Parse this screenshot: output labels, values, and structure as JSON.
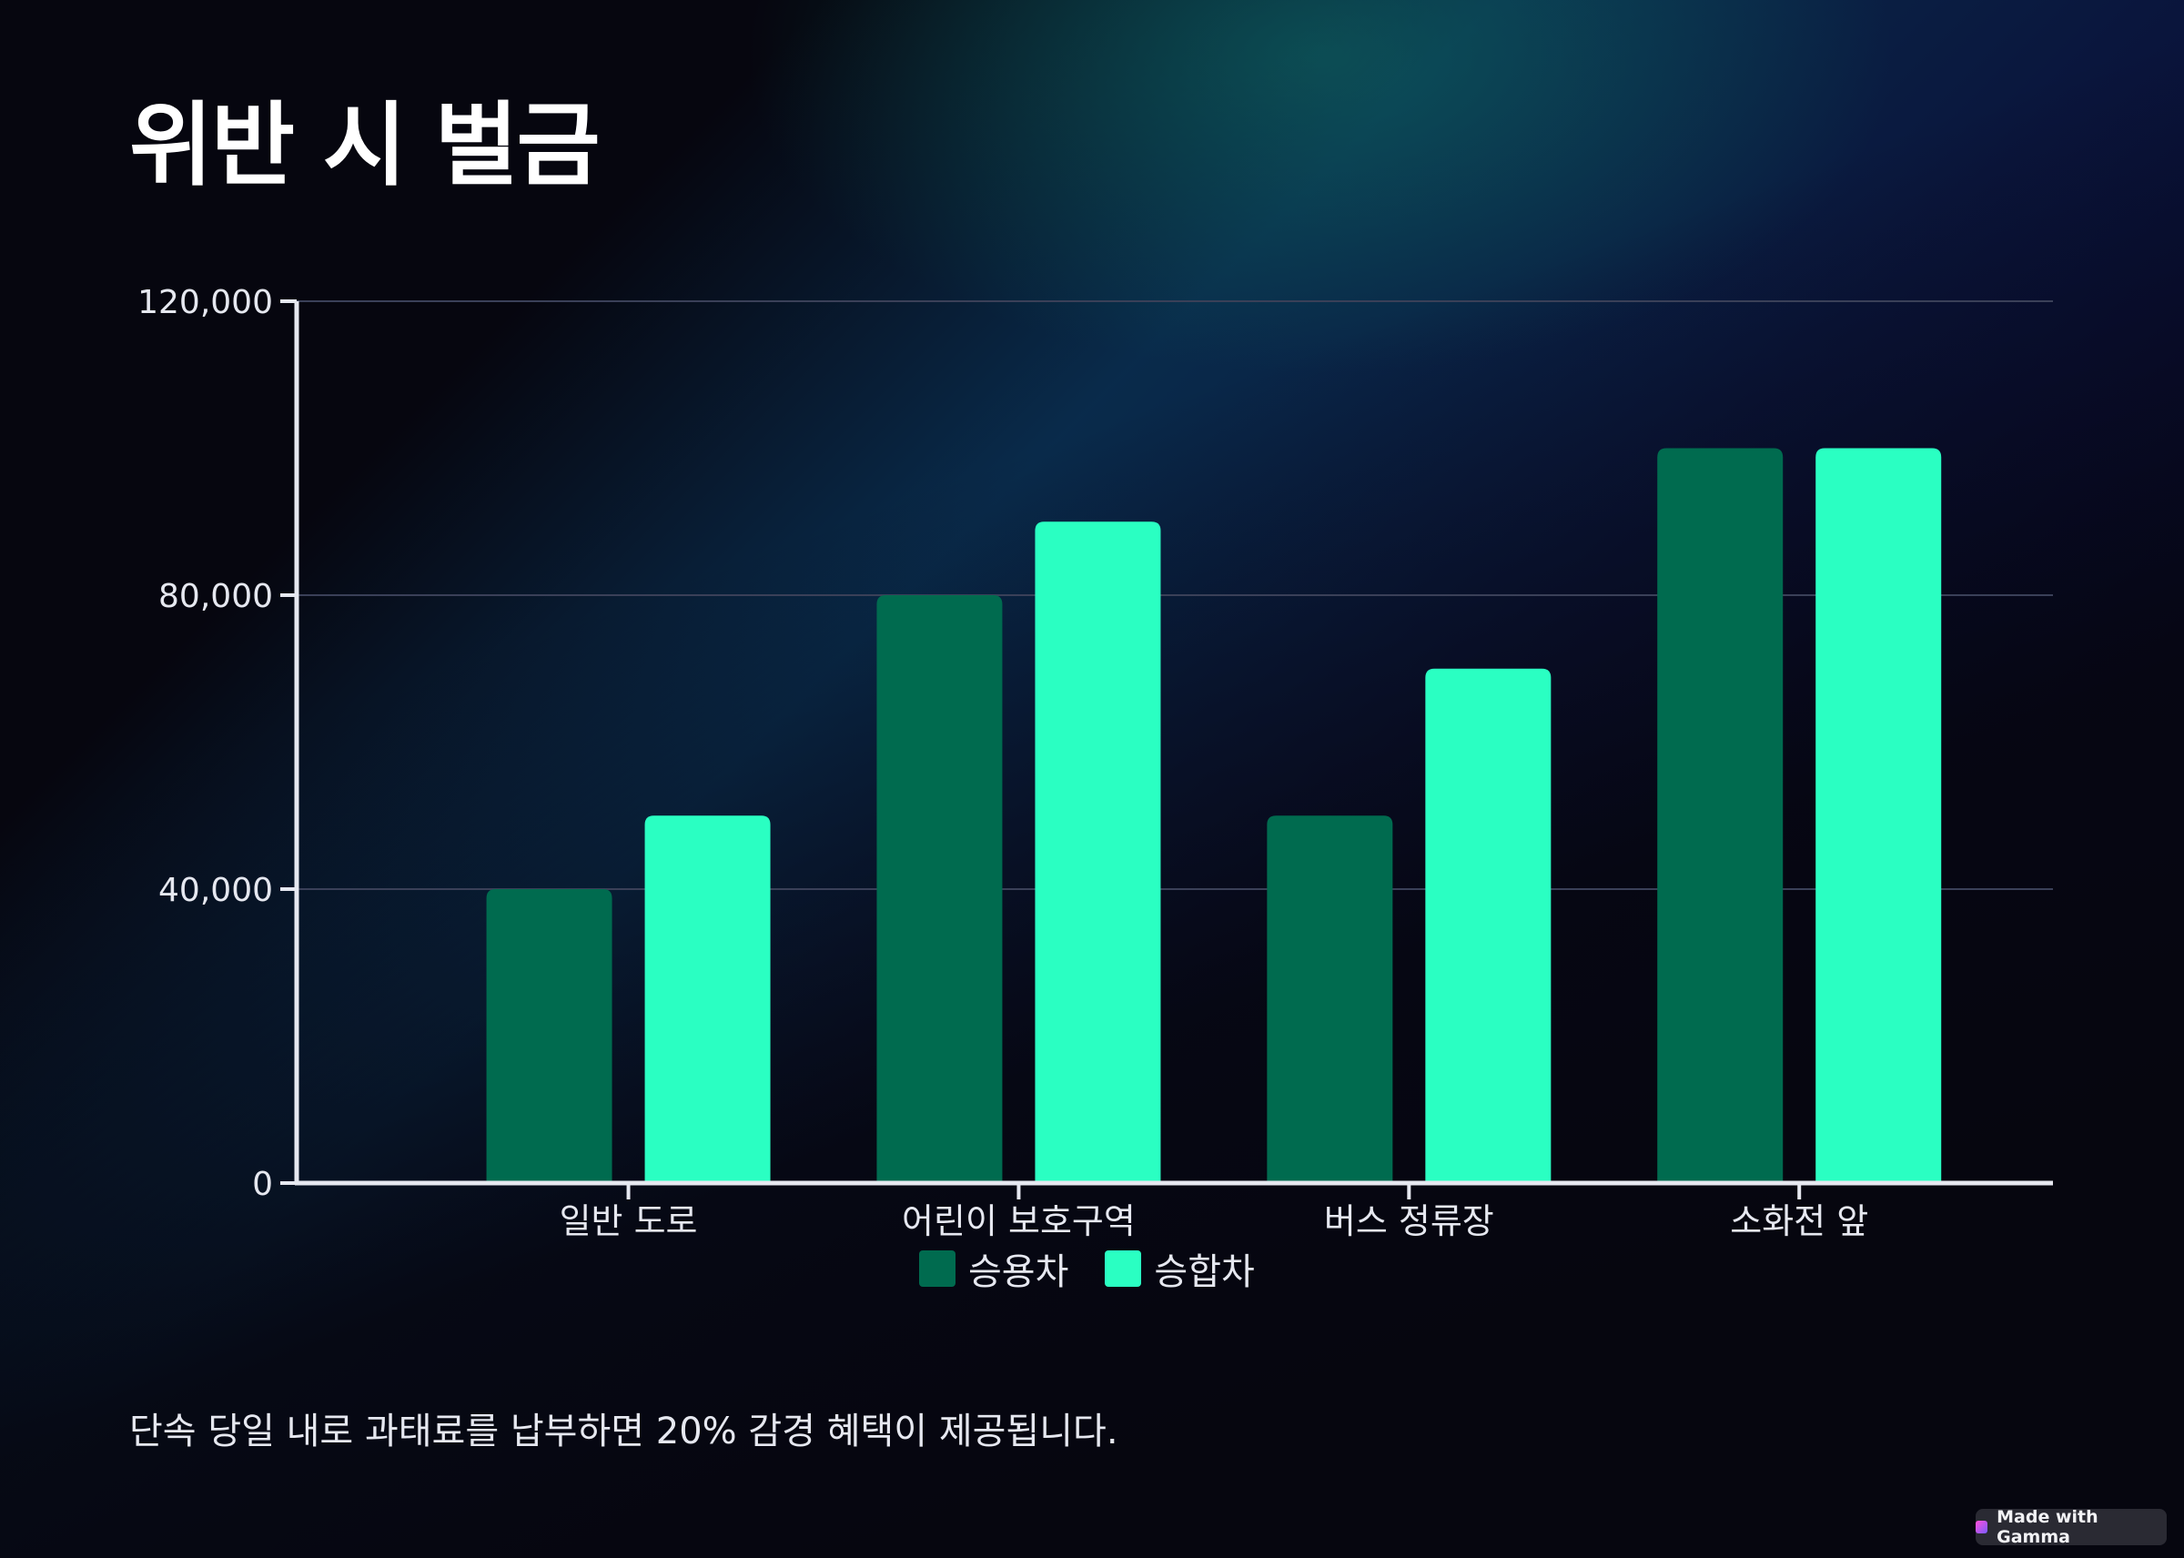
{
  "title": "위반 시 벌금",
  "chart_data": {
    "type": "bar",
    "categories": [
      "일반 도로",
      "어린이 보호구역",
      "버스 정류장",
      "소화전 앞"
    ],
    "series": [
      {
        "name": "승용차",
        "values": [
          40000,
          80000,
          50000,
          100000
        ]
      },
      {
        "name": "승합차",
        "values": [
          50000,
          90000,
          70000,
          100000
        ]
      }
    ],
    "title": "",
    "xlabel": "",
    "ylabel": "",
    "ylim": [
      0,
      120000
    ],
    "yticks": [
      0,
      40000,
      80000,
      120000
    ],
    "ytick_labels": [
      "0",
      "40,000",
      "80,000",
      "120,000"
    ],
    "grid": true,
    "legend": "bottom-center"
  },
  "colors": {
    "series_1": "#006b4f",
    "series_2": "#2affc2",
    "axis": "#e6e8f0",
    "grid": "#3a4058"
  },
  "footnote": "단속 당일 내로 과태료를 납부하면 20% 감경 혜택이 제공됩니다.",
  "badge": {
    "icon": "gamma-logo-icon",
    "label": "Made with Gamma"
  }
}
